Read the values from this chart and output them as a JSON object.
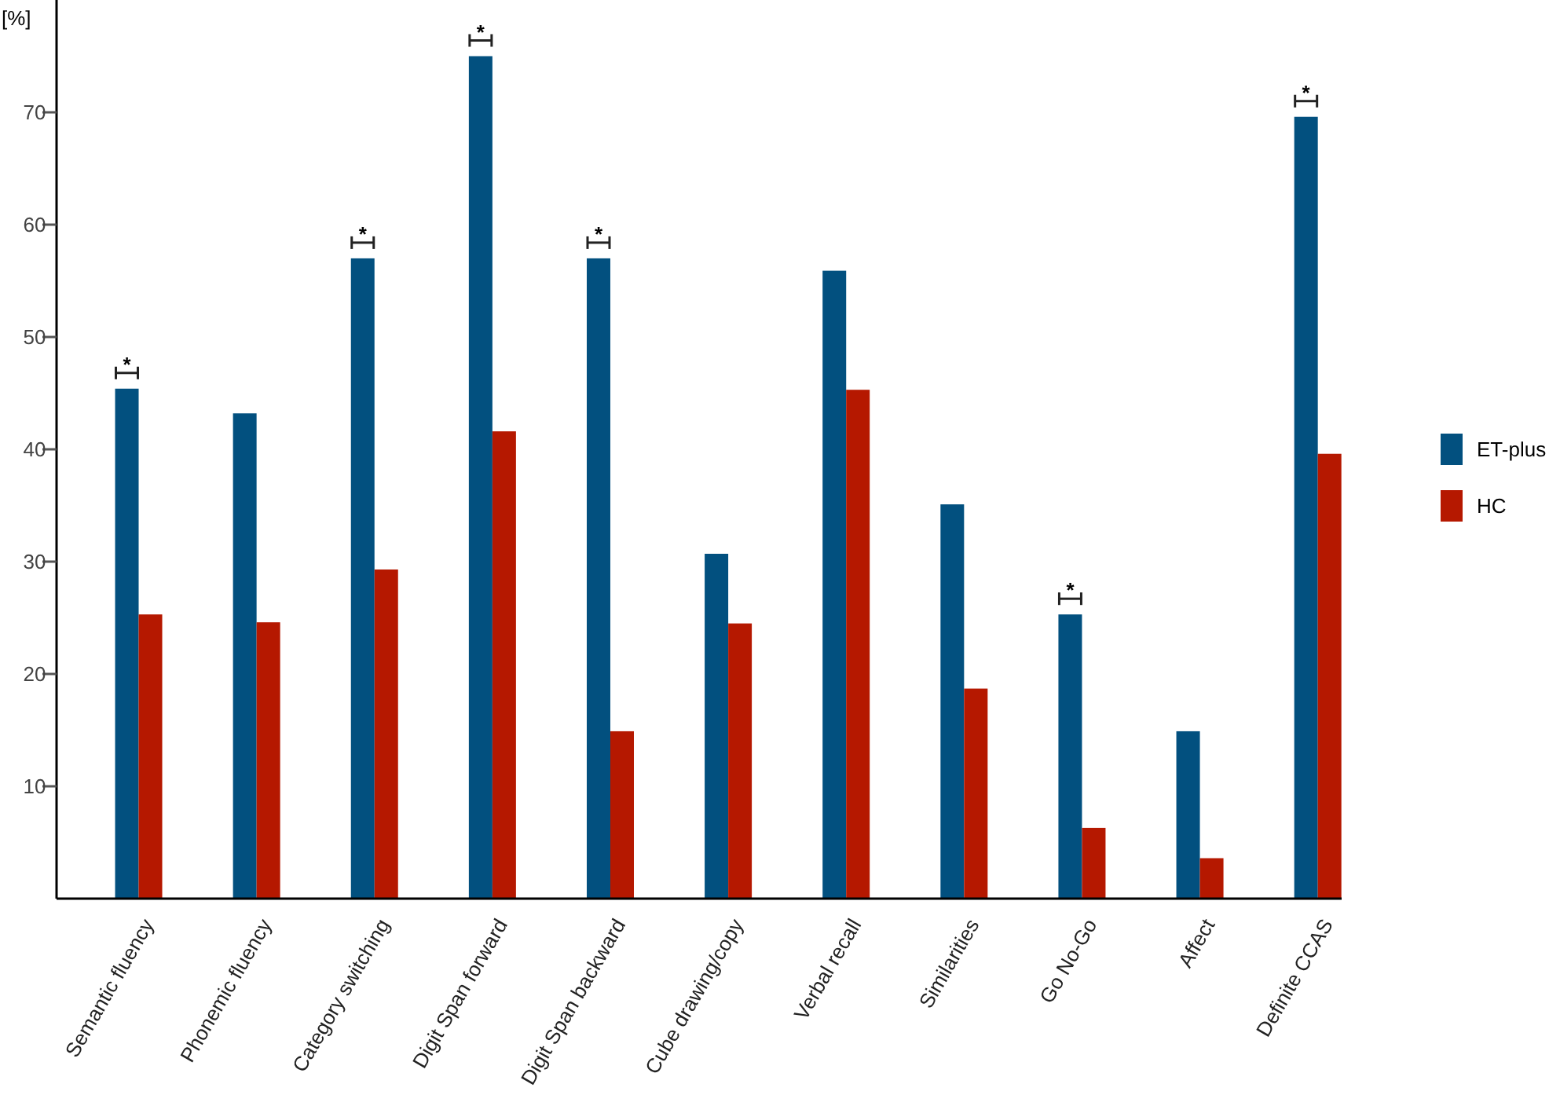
{
  "chart_data": {
    "type": "bar",
    "ylabel": "[%]",
    "categories": [
      "Semantic fluency",
      "Phonemic fluency",
      "Category switching",
      "Digit Span forward",
      "Digit Span backward",
      "Cube drawing/copy",
      "Verbal recall",
      "Similarities",
      "Go No-Go",
      "Affect",
      "Definite CCAS"
    ],
    "series": [
      {
        "name": "ET-plus",
        "color": "#02507f",
        "values": [
          45.4,
          43.2,
          57.0,
          75.0,
          57.0,
          30.7,
          55.9,
          35.1,
          25.3,
          14.9,
          69.6
        ],
        "value_labels": [
          "*",
          null,
          "*",
          "*",
          "*",
          null,
          null,
          null,
          "*",
          null,
          "*"
        ]
      },
      {
        "name": "HC",
        "color": "#b51800",
        "values": [
          25.3,
          24.6,
          29.3,
          41.6,
          14.9,
          24.5,
          45.3,
          18.7,
          6.3,
          3.6,
          39.6
        ]
      }
    ],
    "ylim": [
      0,
      80
    ],
    "yticks": [
      10,
      20,
      30,
      40,
      50,
      60,
      70
    ],
    "grid": false,
    "legend": "right"
  }
}
